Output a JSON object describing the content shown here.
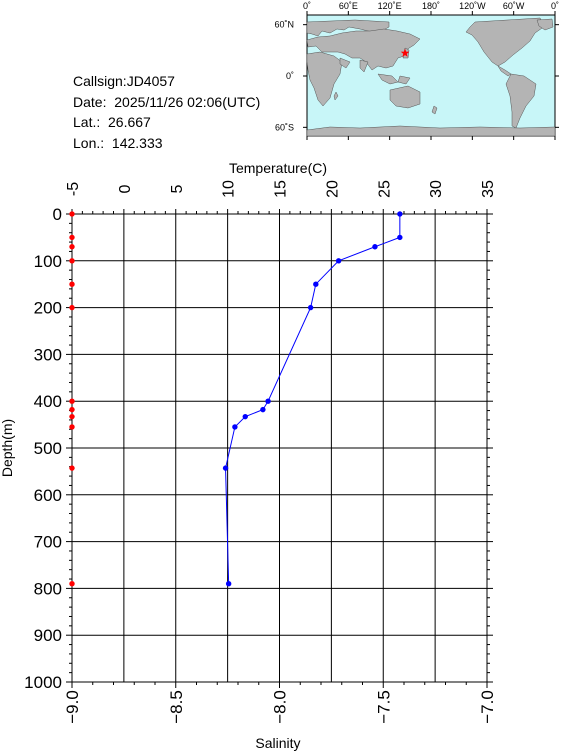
{
  "info": {
    "callsign": "Callsign:JD4057",
    "date": "Date:  2025/11/26 02:06(UTC)",
    "lat": "Lat.:  26.667",
    "lon": "Lon.:  142.333"
  },
  "map": {
    "lon_labels": [
      "0˚",
      "60˚E",
      "120˚E",
      "180˚",
      "120˚W",
      "60˚W",
      "0˚"
    ],
    "lat_labels": [
      "60˚N",
      "0˚",
      "60˚S"
    ],
    "ocean_color": "#c8f6f8",
    "land_color": "#b4b4b4",
    "marker": {
      "lon": 142.333,
      "lat": 26.667,
      "color": "#ff0000",
      "symbol": "star"
    }
  },
  "chart_data": {
    "type": "scatter",
    "title": "",
    "top_axis": {
      "label": "Temperature(C)",
      "range": [
        -5,
        35
      ],
      "ticks": [
        -5,
        0,
        5,
        10,
        15,
        20,
        25,
        30,
        35
      ]
    },
    "bottom_axis": {
      "label": "Salinity",
      "range": [
        -9.0,
        -7.0
      ],
      "ticks": [
        -9.0,
        -8.5,
        -8.0,
        -7.5,
        -7.0
      ],
      "tick_labels": [
        "−9.0",
        "−8.5",
        "−8.0",
        "−7.5",
        "−7.0"
      ]
    },
    "left_axis": {
      "label": "Depth(m)",
      "range": [
        0,
        1000
      ],
      "inverted": true,
      "ticks": [
        0,
        100,
        200,
        300,
        400,
        500,
        600,
        700,
        800,
        900,
        1000
      ]
    },
    "grid": true,
    "series": [
      {
        "name": "Temperature",
        "color": "#0000ff",
        "axis": "top",
        "connected": true,
        "points": [
          [
            26.6,
            0
          ],
          [
            26.6,
            50
          ],
          [
            24.2,
            70
          ],
          [
            20.7,
            100
          ],
          [
            18.5,
            150
          ],
          [
            18.0,
            200
          ],
          [
            13.9,
            400
          ],
          [
            13.4,
            418
          ],
          [
            11.7,
            433
          ],
          [
            10.7,
            455
          ],
          [
            9.8,
            543
          ],
          [
            10.1,
            790
          ]
        ]
      },
      {
        "name": "Salinity",
        "color": "#ff0000",
        "axis": "bottom",
        "connected": false,
        "points": [
          [
            -9.0,
            0
          ],
          [
            -9.0,
            50
          ],
          [
            -9.0,
            70
          ],
          [
            -9.0,
            100
          ],
          [
            -9.0,
            150
          ],
          [
            -9.0,
            200
          ],
          [
            -9.0,
            400
          ],
          [
            -9.0,
            418
          ],
          [
            -9.0,
            433
          ],
          [
            -9.0,
            455
          ],
          [
            -9.0,
            543
          ],
          [
            -9.0,
            790
          ]
        ]
      }
    ]
  }
}
